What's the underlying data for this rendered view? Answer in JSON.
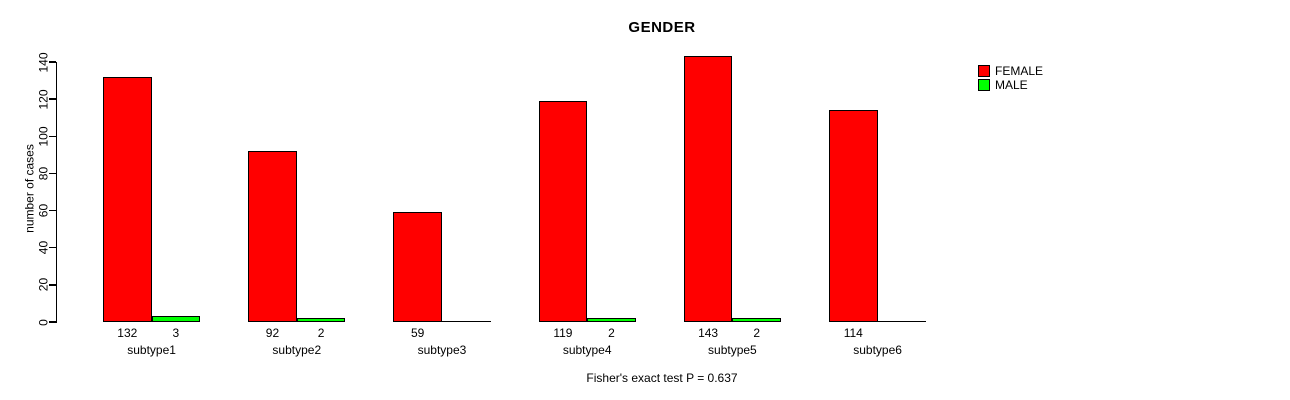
{
  "chart_data": {
    "type": "bar",
    "title": "GENDER",
    "ylabel": "number of cases",
    "xlabel": "",
    "categories": [
      "subtype1",
      "subtype2",
      "subtype3",
      "subtype4",
      "subtype5",
      "subtype6"
    ],
    "series": [
      {
        "name": "FEMALE",
        "color": "#ff0000",
        "values": [
          132,
          92,
          59,
          119,
          143,
          114
        ],
        "value_labels": [
          "132",
          "92",
          "59",
          "119",
          "143",
          "114"
        ]
      },
      {
        "name": "MALE",
        "color": "#00ff00",
        "values": [
          3,
          2,
          0,
          2,
          2,
          0
        ],
        "value_labels": [
          "3",
          "2",
          "",
          "2",
          "2",
          ""
        ]
      }
    ],
    "ylim": [
      0,
      140
    ],
    "yticks": [
      0,
      20,
      40,
      60,
      80,
      100,
      120,
      140
    ],
    "grid": false,
    "legend_position": "right",
    "bar_border_color": "#000000",
    "axis_color": "#000000",
    "background_color": "#ffffff",
    "annotation": "Fisher's exact test P = 0.637"
  }
}
